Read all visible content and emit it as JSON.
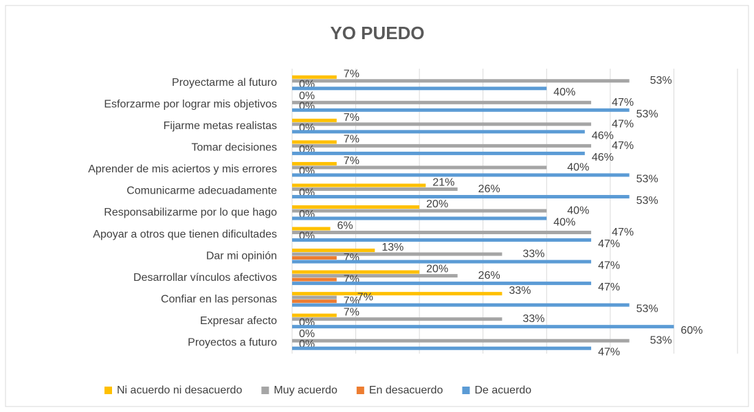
{
  "chart_data": {
    "type": "bar",
    "orientation": "horizontal",
    "title": "YO PUEDO",
    "categories": [
      "Proyectarme al futuro",
      "Esforzarme por lograr mis objetivos",
      "Fijarme metas realistas",
      "Tomar decisiones",
      "Aprender de mis aciertos y mis errores",
      "Comunicarme adecuadamente",
      "Responsabilizarme por lo que hago",
      "Apoyar a otros que tienen dificultades",
      "Dar mi opinión",
      "Desarrollar vínculos afectivos",
      "Confiar en las personas",
      "Expresar afecto",
      "Proyectos a futuro"
    ],
    "series": [
      {
        "name": "Ni acuerdo ni desacuerdo",
        "color": "#ffc000",
        "values": [
          7,
          0,
          7,
          7,
          7,
          21,
          20,
          6,
          13,
          20,
          33,
          7,
          0
        ],
        "value_labels": [
          "7%",
          "0%",
          "7%",
          "7%",
          "7%",
          "21%",
          "20%",
          "6%",
          "13%",
          "20%",
          "33%",
          "7%",
          "0%"
        ]
      },
      {
        "name": "Muy acuerdo",
        "color": "#a5a5a5",
        "values": [
          53,
          47,
          47,
          47,
          40,
          26,
          40,
          47,
          33,
          26,
          7,
          33,
          53
        ],
        "value_labels": [
          "53%",
          "47%",
          "47%",
          "47%",
          "40%",
          "26%",
          "40%",
          "47%",
          "33%",
          "26%",
          "7%",
          "33%",
          "53%"
        ]
      },
      {
        "name": "En desacuerdo",
        "color": "#ed7d31",
        "values": [
          0,
          0,
          0,
          0,
          0,
          0,
          0,
          0,
          7,
          7,
          7,
          0,
          0
        ],
        "value_labels": [
          "0%",
          "0%",
          "0%",
          "0%",
          "0%",
          "0%",
          "0%",
          "0%",
          "7%",
          "7%",
          "7%",
          "0%",
          "0%"
        ]
      },
      {
        "name": "De acuerdo",
        "color": "#5b9bd5",
        "values": [
          40,
          53,
          46,
          46,
          53,
          53,
          40,
          47,
          47,
          47,
          53,
          60,
          47
        ],
        "value_labels": [
          "40%",
          "53%",
          "46%",
          "46%",
          "53%",
          "53%",
          "40%",
          "47%",
          "47%",
          "47%",
          "53%",
          "60%",
          "47%"
        ]
      }
    ],
    "xlim": [
      0,
      70
    ],
    "xticks": [
      0,
      10,
      20,
      30,
      40,
      50,
      60,
      70
    ],
    "grid": true,
    "legend": "bottom"
  }
}
